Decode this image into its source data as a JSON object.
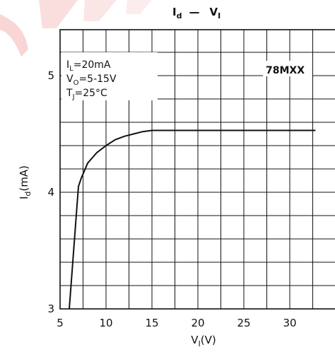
{
  "chart_data": {
    "type": "line",
    "title": "I_d — V_I",
    "title_parts": {
      "left": "I",
      "left_sub": "d",
      "dash": "—",
      "right": "V",
      "right_sub": "I"
    },
    "ylabel": {
      "main": "I",
      "sub": "d",
      "rest": "(mA)"
    },
    "xlabel": {
      "main": "V",
      "sub": "I",
      "rest": "(V)"
    },
    "xlim": [
      5,
      35
    ],
    "ylim": [
      3,
      5.4
    ],
    "x_grid_step": 2.5,
    "y_grid_step": 0.2,
    "grid": true,
    "x_ticks": [
      {
        "value": 5,
        "label": "5"
      },
      {
        "value": 10,
        "label": "10"
      },
      {
        "value": 15,
        "label": "15"
      },
      {
        "value": 20,
        "label": "20"
      },
      {
        "value": 25,
        "label": "25"
      },
      {
        "value": 30,
        "label": "30"
      }
    ],
    "y_ticks": [
      {
        "value": 3,
        "label": "3"
      },
      {
        "value": 4,
        "label": "4"
      },
      {
        "value": 5,
        "label": "5"
      }
    ],
    "annotations": [
      {
        "main": "I",
        "sub": "L",
        "rest": "=20mA"
      },
      {
        "main": "V",
        "sub": "O",
        "rest": "=5-15V"
      },
      {
        "main": "T",
        "sub": "J",
        "rest": "=25°C"
      }
    ],
    "part_label": "78MXX",
    "series": [
      {
        "x": [
          6.0,
          7.0,
          7.3,
          8.0,
          9.0,
          10.0,
          11.0,
          12.0,
          13.0,
          14.0,
          15.0,
          20.0,
          25.0,
          30.0,
          32.8
        ],
        "y": [
          3.0,
          4.05,
          4.12,
          4.25,
          4.34,
          4.4,
          4.45,
          4.48,
          4.5,
          4.52,
          4.53,
          4.53,
          4.53,
          4.53,
          4.53
        ]
      }
    ]
  }
}
